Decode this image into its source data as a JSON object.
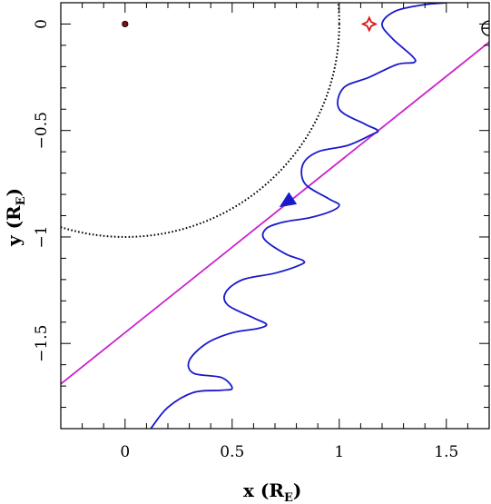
{
  "chart_data": {
    "type": "line",
    "title": "",
    "xlabel": {
      "prefix": "x (R",
      "sub": "E",
      "suffix": ")"
    },
    "ylabel": {
      "prefix": "y (R",
      "sub": "E",
      "suffix": ")"
    },
    "xlim": [
      -0.3,
      1.7
    ],
    "ylim": [
      -1.9,
      0.1
    ],
    "grid": false,
    "x_ticks": [
      0,
      0.5,
      1,
      1.5
    ],
    "x_tick_labels": [
      "0",
      "0.5",
      "1",
      "1.5"
    ],
    "y_ticks": [
      0,
      -0.5,
      -1,
      -1.5
    ],
    "y_tick_labels": [
      "0",
      "−0.5",
      "−1",
      "−1.5"
    ],
    "series": [
      {
        "kind": "earth-circle",
        "style": "dotted",
        "color": "#000000",
        "center": [
          0,
          0
        ],
        "radius": 1
      },
      {
        "kind": "guiding-line",
        "style": "solid",
        "color": "#cc22cc",
        "x": [
          -0.3,
          1.7
        ],
        "y": [
          -1.69,
          -0.085
        ]
      },
      {
        "kind": "trajectory",
        "style": "solid",
        "color": "#1a1acc",
        "x": [
          0.12,
          0.2,
          0.32,
          0.45,
          0.5,
          0.45,
          0.32,
          0.3,
          0.38,
          0.5,
          0.62,
          0.66,
          0.6,
          0.48,
          0.47,
          0.55,
          0.7,
          0.82,
          0.83,
          0.75,
          0.65,
          0.66,
          0.74,
          0.86,
          0.96,
          1.0,
          0.95,
          0.84,
          0.83,
          0.9,
          1.04,
          1.15,
          1.18,
          1.12,
          1.0,
          1.02,
          1.14,
          1.27,
          1.35,
          1.34,
          1.25,
          1.2,
          1.26,
          1.39,
          1.5
        ],
        "y": [
          -1.9,
          -1.8,
          -1.73,
          -1.72,
          -1.71,
          -1.66,
          -1.64,
          -1.58,
          -1.5,
          -1.45,
          -1.43,
          -1.41,
          -1.38,
          -1.32,
          -1.26,
          -1.2,
          -1.17,
          -1.13,
          -1.11,
          -1.08,
          -1.01,
          -0.96,
          -0.93,
          -0.91,
          -0.88,
          -0.85,
          -0.82,
          -0.75,
          -0.66,
          -0.6,
          -0.57,
          -0.52,
          -0.5,
          -0.47,
          -0.4,
          -0.3,
          -0.25,
          -0.19,
          -0.18,
          -0.15,
          -0.07,
          0.0,
          0.06,
          0.09,
          0.1
        ]
      }
    ],
    "markers": [
      {
        "kind": "earth-center-dot",
        "color": "#7a1212",
        "x": 0,
        "y": 0
      },
      {
        "kind": "red-star-marker",
        "color": "#dd1111",
        "x": 1.14,
        "y": 0
      },
      {
        "kind": "moon-symbol",
        "color": "#000000",
        "x": 1.7,
        "y": -0.02
      }
    ],
    "direction_arrow": {
      "color": "#1a1acc",
      "x": 0.72,
      "y": -0.86,
      "from_x": 0.78,
      "from_y": -0.82
    }
  }
}
